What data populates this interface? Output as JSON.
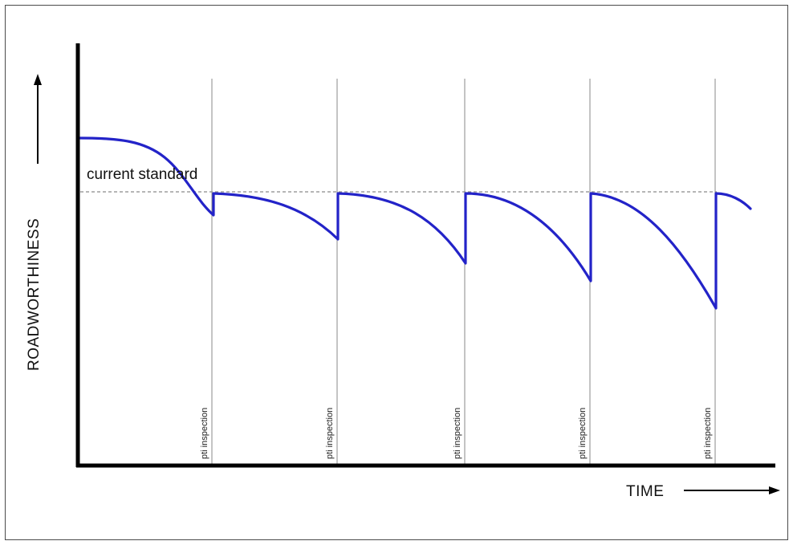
{
  "diagram": {
    "standard_label": "current standard",
    "x_axis_label": "TIME",
    "y_axis_label": "ROADWORTHINESS",
    "inspection_labels": [
      "pti inspection",
      "pti inspection",
      "pti inspection",
      "pti inspection",
      "pti inspection"
    ]
  },
  "colors": {
    "curve": "#2323c8",
    "axis": "#000000",
    "guide": "#888888",
    "standard_line": "#8a8a8a"
  }
}
